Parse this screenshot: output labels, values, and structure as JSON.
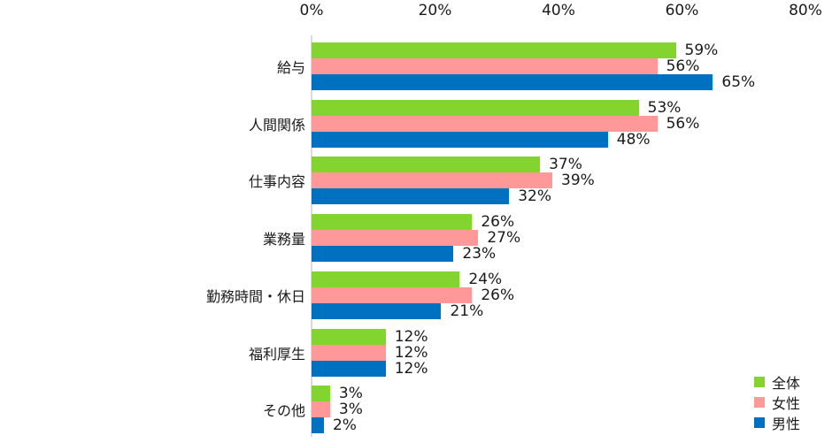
{
  "chart_data": {
    "type": "bar",
    "orientation": "horizontal",
    "title": "",
    "xlabel": "",
    "ylabel": "",
    "xlim": [
      0,
      80
    ],
    "x_ticks": [
      "0%",
      "20%",
      "40%",
      "60%",
      "80%"
    ],
    "categories": [
      "給与",
      "人間関係",
      "仕事内容",
      "業務量",
      "勤務時間・休日",
      "福利厚生",
      "その他"
    ],
    "series": [
      {
        "name": "全体",
        "color": "#84D430",
        "values": [
          59,
          53,
          37,
          26,
          24,
          12,
          3
        ]
      },
      {
        "name": "女性",
        "color": "#FF9999",
        "values": [
          56,
          56,
          39,
          27,
          26,
          12,
          3
        ]
      },
      {
        "name": "男性",
        "color": "#0070C0",
        "values": [
          65,
          48,
          32,
          23,
          21,
          12,
          2
        ]
      }
    ],
    "value_suffix": "%",
    "grid": false,
    "legend_position": "bottom-right",
    "axis_position": "top"
  }
}
